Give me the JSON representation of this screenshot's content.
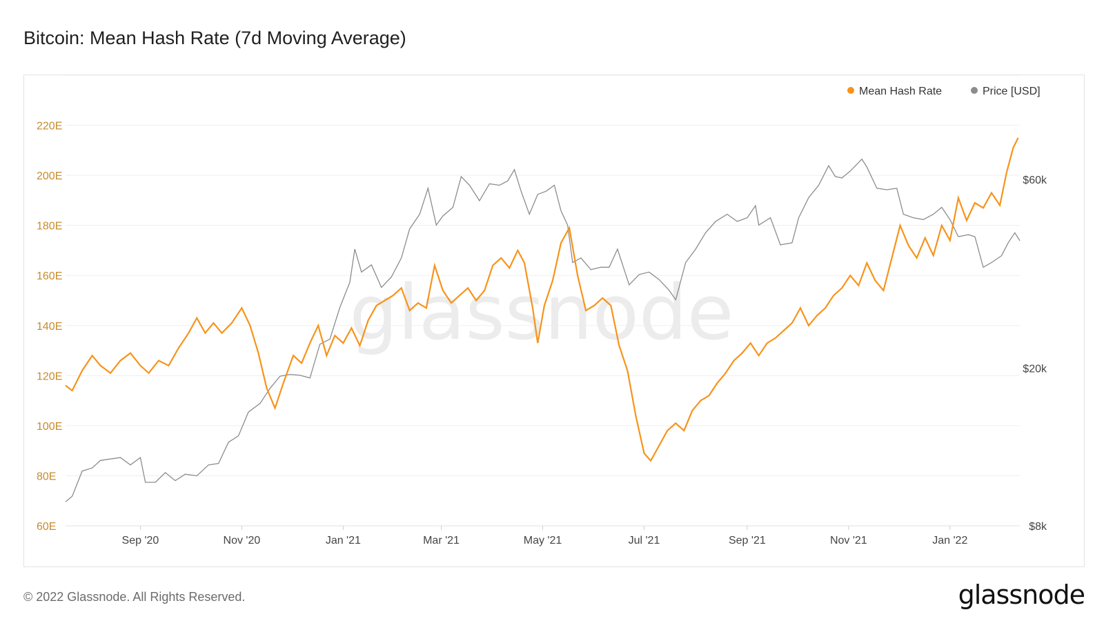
{
  "title": "Bitcoin: Mean Hash Rate (7d Moving Average)",
  "footer": "© 2022 Glassnode. All Rights Reserved.",
  "logo": "glassnode",
  "watermark": "glassnode",
  "colors": {
    "hash": "#f7931a",
    "price": "#8c8c8c",
    "left_axis": "#c88a2a",
    "grid": "#efefef"
  },
  "chart_data": {
    "type": "line",
    "x_range": [
      "2020-07-18",
      "2022-02-12"
    ],
    "x_ticks": [
      {
        "date": "2020-09-01",
        "label": "Sep '20"
      },
      {
        "date": "2020-11-01",
        "label": "Nov '20"
      },
      {
        "date": "2021-01-01",
        "label": "Jan '21"
      },
      {
        "date": "2021-03-01",
        "label": "Mar '21"
      },
      {
        "date": "2021-05-01",
        "label": "May '21"
      },
      {
        "date": "2021-07-01",
        "label": "Jul '21"
      },
      {
        "date": "2021-09-01",
        "label": "Sep '21"
      },
      {
        "date": "2021-11-01",
        "label": "Nov '21"
      },
      {
        "date": "2022-01-01",
        "label": "Jan '22"
      }
    ],
    "y_left": {
      "range": [
        60,
        240
      ],
      "ticks": [
        {
          "value": 60,
          "label": "60E"
        },
        {
          "value": 80,
          "label": "80E"
        },
        {
          "value": 100,
          "label": "100E"
        },
        {
          "value": 120,
          "label": "120E"
        },
        {
          "value": 140,
          "label": "140E"
        },
        {
          "value": 160,
          "label": "160E"
        },
        {
          "value": 180,
          "label": "180E"
        },
        {
          "value": 200,
          "label": "200E"
        },
        {
          "value": 220,
          "label": "220E"
        }
      ]
    },
    "y_right": {
      "scale": "log",
      "range": [
        8000,
        110000
      ],
      "ticks": [
        {
          "value": 8000,
          "label": "$8k"
        },
        {
          "value": 20000,
          "label": "$20k"
        },
        {
          "value": 60000,
          "label": "$60k"
        }
      ]
    },
    "legend": {
      "position": "top-right"
    },
    "series": [
      {
        "name": "Mean Hash Rate",
        "axis": "left",
        "color": "#f7931a",
        "points": [
          [
            "2020-07-18",
            116
          ],
          [
            "2020-07-22",
            114
          ],
          [
            "2020-07-28",
            122
          ],
          [
            "2020-08-03",
            128
          ],
          [
            "2020-08-08",
            124
          ],
          [
            "2020-08-14",
            121
          ],
          [
            "2020-08-20",
            126
          ],
          [
            "2020-08-26",
            129
          ],
          [
            "2020-09-01",
            124
          ],
          [
            "2020-09-06",
            121
          ],
          [
            "2020-09-12",
            126
          ],
          [
            "2020-09-18",
            124
          ],
          [
            "2020-09-24",
            131
          ],
          [
            "2020-09-30",
            137
          ],
          [
            "2020-10-05",
            143
          ],
          [
            "2020-10-10",
            137
          ],
          [
            "2020-10-15",
            141
          ],
          [
            "2020-10-20",
            137
          ],
          [
            "2020-10-26",
            141
          ],
          [
            "2020-11-01",
            147
          ],
          [
            "2020-11-06",
            140
          ],
          [
            "2020-11-11",
            129
          ],
          [
            "2020-11-16",
            115
          ],
          [
            "2020-11-21",
            107
          ],
          [
            "2020-11-26",
            117
          ],
          [
            "2020-12-02",
            128
          ],
          [
            "2020-12-07",
            125
          ],
          [
            "2020-12-12",
            133
          ],
          [
            "2020-12-17",
            140
          ],
          [
            "2020-12-22",
            128
          ],
          [
            "2020-12-27",
            136
          ],
          [
            "2021-01-01",
            133
          ],
          [
            "2021-01-06",
            139
          ],
          [
            "2021-01-11",
            132
          ],
          [
            "2021-01-16",
            142
          ],
          [
            "2021-01-21",
            148
          ],
          [
            "2021-01-26",
            150
          ],
          [
            "2021-01-31",
            152
          ],
          [
            "2021-02-05",
            155
          ],
          [
            "2021-02-10",
            146
          ],
          [
            "2021-02-15",
            149
          ],
          [
            "2021-02-20",
            147
          ],
          [
            "2021-02-25",
            164
          ],
          [
            "2021-03-02",
            154
          ],
          [
            "2021-03-07",
            149
          ],
          [
            "2021-03-12",
            152
          ],
          [
            "2021-03-17",
            155
          ],
          [
            "2021-03-22",
            150
          ],
          [
            "2021-03-27",
            154
          ],
          [
            "2021-04-01",
            164
          ],
          [
            "2021-04-06",
            167
          ],
          [
            "2021-04-11",
            163
          ],
          [
            "2021-04-16",
            170
          ],
          [
            "2021-04-20",
            165
          ],
          [
            "2021-04-25",
            147
          ],
          [
            "2021-04-28",
            133
          ],
          [
            "2021-05-02",
            148
          ],
          [
            "2021-05-07",
            158
          ],
          [
            "2021-05-12",
            173
          ],
          [
            "2021-05-17",
            179
          ],
          [
            "2021-05-22",
            160
          ],
          [
            "2021-05-27",
            146
          ],
          [
            "2021-06-01",
            148
          ],
          [
            "2021-06-06",
            151
          ],
          [
            "2021-06-11",
            148
          ],
          [
            "2021-06-16",
            132
          ],
          [
            "2021-06-21",
            122
          ],
          [
            "2021-06-26",
            104
          ],
          [
            "2021-07-01",
            89
          ],
          [
            "2021-07-05",
            86
          ],
          [
            "2021-07-10",
            92
          ],
          [
            "2021-07-15",
            98
          ],
          [
            "2021-07-20",
            101
          ],
          [
            "2021-07-25",
            98
          ],
          [
            "2021-07-30",
            106
          ],
          [
            "2021-08-04",
            110
          ],
          [
            "2021-08-09",
            112
          ],
          [
            "2021-08-14",
            117
          ],
          [
            "2021-08-19",
            121
          ],
          [
            "2021-08-24",
            126
          ],
          [
            "2021-08-29",
            129
          ],
          [
            "2021-09-03",
            133
          ],
          [
            "2021-09-08",
            128
          ],
          [
            "2021-09-13",
            133
          ],
          [
            "2021-09-18",
            135
          ],
          [
            "2021-09-23",
            138
          ],
          [
            "2021-09-28",
            141
          ],
          [
            "2021-10-03",
            147
          ],
          [
            "2021-10-08",
            140
          ],
          [
            "2021-10-13",
            144
          ],
          [
            "2021-10-18",
            147
          ],
          [
            "2021-10-23",
            152
          ],
          [
            "2021-10-28",
            155
          ],
          [
            "2021-11-02",
            160
          ],
          [
            "2021-11-07",
            156
          ],
          [
            "2021-11-12",
            165
          ],
          [
            "2021-11-17",
            158
          ],
          [
            "2021-11-22",
            154
          ],
          [
            "2021-11-27",
            167
          ],
          [
            "2021-12-02",
            180
          ],
          [
            "2021-12-07",
            172
          ],
          [
            "2021-12-12",
            167
          ],
          [
            "2021-12-17",
            175
          ],
          [
            "2021-12-22",
            168
          ],
          [
            "2021-12-27",
            180
          ],
          [
            "2022-01-01",
            174
          ],
          [
            "2022-01-06",
            191
          ],
          [
            "2022-01-11",
            182
          ],
          [
            "2022-01-16",
            189
          ],
          [
            "2022-01-21",
            187
          ],
          [
            "2022-01-26",
            193
          ],
          [
            "2022-01-31",
            188
          ],
          [
            "2022-02-04",
            201
          ],
          [
            "2022-02-08",
            211
          ],
          [
            "2022-02-11",
            215
          ]
        ]
      },
      {
        "name": "Price [USD]",
        "axis": "right",
        "color": "#8c8c8c",
        "points": [
          [
            "2020-07-18",
            9200
          ],
          [
            "2020-07-22",
            9500
          ],
          [
            "2020-07-28",
            11000
          ],
          [
            "2020-08-03",
            11200
          ],
          [
            "2020-08-08",
            11700
          ],
          [
            "2020-08-14",
            11800
          ],
          [
            "2020-08-20",
            11900
          ],
          [
            "2020-08-26",
            11400
          ],
          [
            "2020-09-01",
            11900
          ],
          [
            "2020-09-04",
            10300
          ],
          [
            "2020-09-10",
            10300
          ],
          [
            "2020-09-16",
            10900
          ],
          [
            "2020-09-22",
            10400
          ],
          [
            "2020-09-28",
            10800
          ],
          [
            "2020-10-05",
            10700
          ],
          [
            "2020-10-12",
            11400
          ],
          [
            "2020-10-18",
            11500
          ],
          [
            "2020-10-24",
            13000
          ],
          [
            "2020-10-30",
            13500
          ],
          [
            "2020-11-05",
            15500
          ],
          [
            "2020-11-12",
            16300
          ],
          [
            "2020-11-18",
            17800
          ],
          [
            "2020-11-24",
            19100
          ],
          [
            "2020-11-30",
            19300
          ],
          [
            "2020-12-06",
            19200
          ],
          [
            "2020-12-12",
            18900
          ],
          [
            "2020-12-18",
            23000
          ],
          [
            "2020-12-24",
            23700
          ],
          [
            "2020-12-30",
            28500
          ],
          [
            "2021-01-05",
            33000
          ],
          [
            "2021-01-08",
            40000
          ],
          [
            "2021-01-12",
            35000
          ],
          [
            "2021-01-18",
            36500
          ],
          [
            "2021-01-24",
            32000
          ],
          [
            "2021-01-30",
            34000
          ],
          [
            "2021-02-05",
            38000
          ],
          [
            "2021-02-10",
            45000
          ],
          [
            "2021-02-16",
            49000
          ],
          [
            "2021-02-21",
            57000
          ],
          [
            "2021-02-26",
            46000
          ],
          [
            "2021-03-02",
            48500
          ],
          [
            "2021-03-08",
            51000
          ],
          [
            "2021-03-13",
            61000
          ],
          [
            "2021-03-18",
            58000
          ],
          [
            "2021-03-24",
            53000
          ],
          [
            "2021-03-30",
            58500
          ],
          [
            "2021-04-05",
            58000
          ],
          [
            "2021-04-10",
            59500
          ],
          [
            "2021-04-14",
            63500
          ],
          [
            "2021-04-18",
            56000
          ],
          [
            "2021-04-23",
            49000
          ],
          [
            "2021-04-28",
            55000
          ],
          [
            "2021-05-03",
            56000
          ],
          [
            "2021-05-08",
            58000
          ],
          [
            "2021-05-12",
            50000
          ],
          [
            "2021-05-16",
            46000
          ],
          [
            "2021-05-19",
            37000
          ],
          [
            "2021-05-24",
            38000
          ],
          [
            "2021-05-30",
            35500
          ],
          [
            "2021-06-05",
            36000
          ],
          [
            "2021-06-10",
            36000
          ],
          [
            "2021-06-15",
            40000
          ],
          [
            "2021-06-22",
            32500
          ],
          [
            "2021-06-28",
            34500
          ],
          [
            "2021-07-04",
            35000
          ],
          [
            "2021-07-10",
            33500
          ],
          [
            "2021-07-16",
            31500
          ],
          [
            "2021-07-20",
            29800
          ],
          [
            "2021-07-26",
            37000
          ],
          [
            "2021-08-01",
            40000
          ],
          [
            "2021-08-07",
            44000
          ],
          [
            "2021-08-13",
            47000
          ],
          [
            "2021-08-20",
            49000
          ],
          [
            "2021-08-26",
            47000
          ],
          [
            "2021-09-01",
            48000
          ],
          [
            "2021-09-06",
            51500
          ],
          [
            "2021-09-08",
            46000
          ],
          [
            "2021-09-15",
            48000
          ],
          [
            "2021-09-21",
            41000
          ],
          [
            "2021-09-28",
            41500
          ],
          [
            "2021-10-02",
            48000
          ],
          [
            "2021-10-08",
            54000
          ],
          [
            "2021-10-14",
            58000
          ],
          [
            "2021-10-20",
            65000
          ],
          [
            "2021-10-24",
            61000
          ],
          [
            "2021-10-28",
            60500
          ],
          [
            "2021-11-02",
            63000
          ],
          [
            "2021-11-09",
            67500
          ],
          [
            "2021-11-12",
            64500
          ],
          [
            "2021-11-18",
            57000
          ],
          [
            "2021-11-24",
            56500
          ],
          [
            "2021-11-30",
            57000
          ],
          [
            "2021-12-04",
            49000
          ],
          [
            "2021-12-10",
            48000
          ],
          [
            "2021-12-16",
            47500
          ],
          [
            "2021-12-22",
            49000
          ],
          [
            "2021-12-27",
            51000
          ],
          [
            "2022-01-01",
            47500
          ],
          [
            "2022-01-06",
            43000
          ],
          [
            "2022-01-12",
            43500
          ],
          [
            "2022-01-16",
            43000
          ],
          [
            "2022-01-21",
            36000
          ],
          [
            "2022-01-26",
            37000
          ],
          [
            "2022-02-01",
            38500
          ],
          [
            "2022-02-05",
            41500
          ],
          [
            "2022-02-09",
            44000
          ],
          [
            "2022-02-12",
            42000
          ]
        ]
      }
    ]
  }
}
